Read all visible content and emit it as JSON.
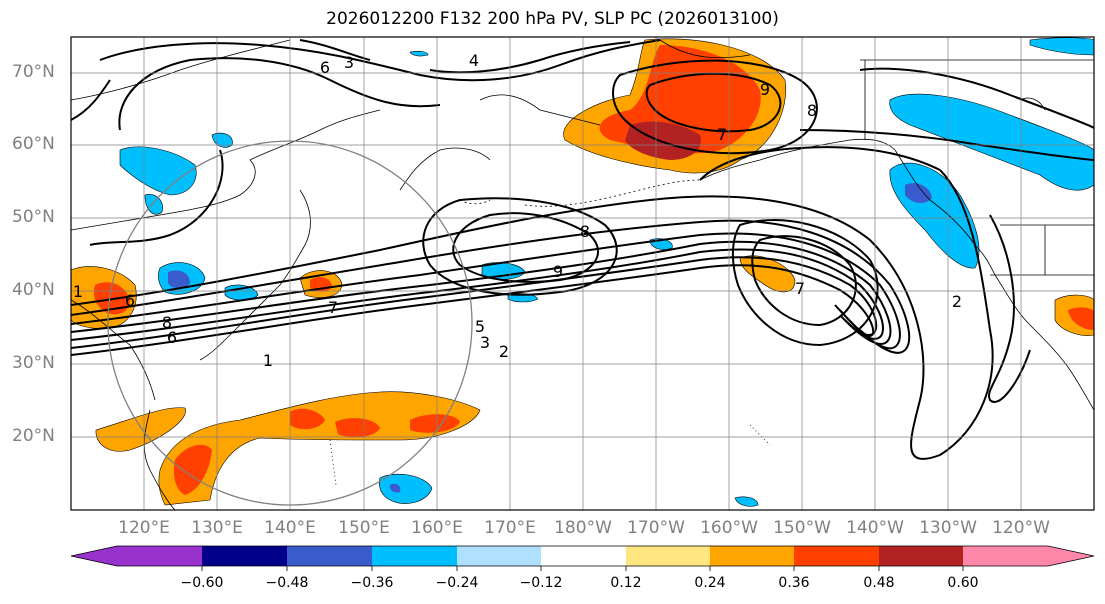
{
  "title": "2026012200 F132 200 hPa PV, SLP PC (2026013100)",
  "lat_labels": [
    "70°N",
    "60°N",
    "50°N",
    "40°N",
    "30°N",
    "20°N"
  ],
  "lon_labels": [
    "120°E",
    "130°E",
    "140°E",
    "150°E",
    "160°E",
    "170°E",
    "180°W",
    "170°W",
    "160°W",
    "150°W",
    "140°W",
    "130°W",
    "120°W"
  ],
  "contour_labels": [
    "6",
    "3",
    "4",
    "9",
    "8",
    "7",
    "8",
    "9",
    "7",
    "2",
    "5",
    "3",
    "2",
    "1",
    "7",
    "6",
    "8",
    "6",
    "1"
  ],
  "colorbar": {
    "ticks": [
      "−0.60",
      "−0.48",
      "−0.36",
      "−0.24",
      "−0.12",
      "0.12",
      "0.24",
      "0.36",
      "0.48",
      "0.60"
    ],
    "colors": [
      "#9932CC",
      "#00008B",
      "#3A5BCC",
      "#00BFFF",
      "#B0E0FF",
      "#FFFFFF",
      "#FFE680",
      "#FFA500",
      "#FF4000",
      "#B22222",
      "#FF88AA"
    ]
  }
}
